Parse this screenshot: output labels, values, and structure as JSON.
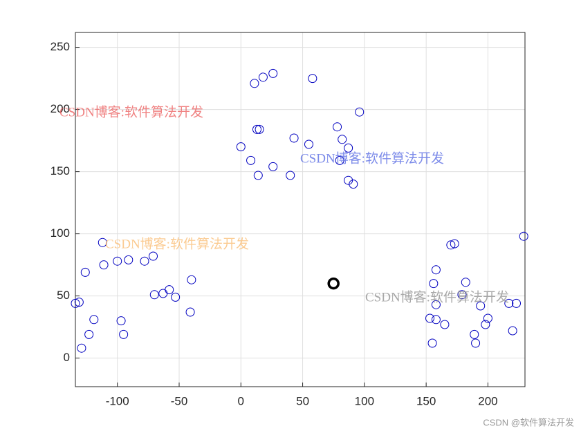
{
  "chart_data": {
    "type": "scatter",
    "xlim": [
      -134,
      230
    ],
    "ylim": [
      -23,
      262
    ],
    "xticks": [
      -100,
      -50,
      0,
      50,
      100,
      150,
      200
    ],
    "yticks": [
      0,
      50,
      100,
      150,
      200,
      250
    ],
    "grid": true,
    "series": [
      {
        "color": "#0000c0",
        "x": [
          -134,
          -131,
          -129,
          -126,
          -123,
          -119,
          -112,
          -111,
          -100,
          -97,
          -95,
          -91,
          -78,
          -71,
          -70,
          -63,
          -58,
          -53,
          -41,
          -40,
          0,
          8,
          11,
          13,
          15,
          14,
          18,
          26,
          26,
          40,
          43,
          55,
          58,
          78,
          80,
          82,
          87,
          87,
          91,
          96,
          153,
          155,
          156,
          158,
          158,
          158,
          165,
          170,
          173,
          179,
          182,
          189,
          190,
          194,
          198,
          200,
          217,
          220,
          223,
          229
        ],
        "values": [
          44,
          45,
          8,
          69,
          19,
          31,
          93,
          75,
          78,
          30,
          19,
          79,
          78,
          82,
          51,
          52,
          55,
          49,
          37,
          63,
          170,
          159,
          221,
          184,
          184,
          147,
          226,
          154,
          229,
          147,
          177,
          172,
          225,
          186,
          159,
          176,
          169,
          143,
          140,
          198,
          32,
          12,
          60,
          43,
          31,
          71,
          27,
          91,
          92,
          51,
          61,
          19,
          12,
          42,
          27,
          32,
          44,
          22,
          44,
          98
        ]
      },
      {
        "color": "#000000",
        "x": [
          75
        ],
        "values": [
          60
        ]
      }
    ],
    "annotations": [
      "CSDN博客:软件算法开发",
      "CSDN博客:软件算法开发",
      "CSDN博客:软件算法开发",
      "CSDN博客:软件算法开发",
      "CSDN @软件算法开发"
    ]
  }
}
